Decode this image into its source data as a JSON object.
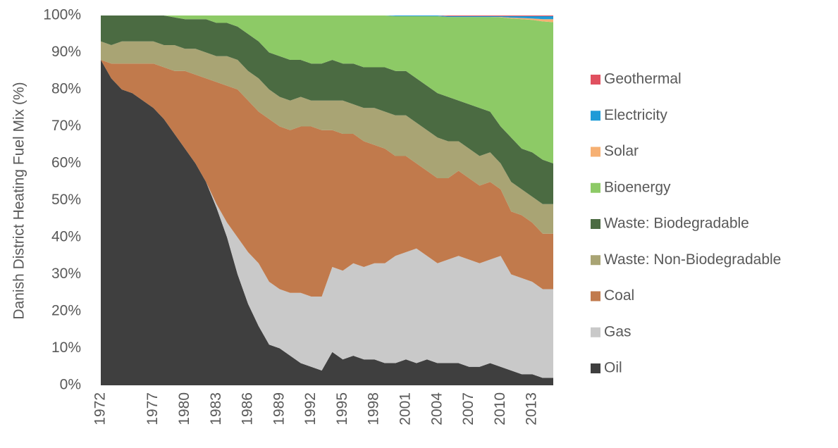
{
  "chart_data": {
    "type": "stacked_area",
    "y_label": "Danish District Heating Fuel Mix (%)",
    "categories": [
      "1972",
      null,
      null,
      null,
      null,
      "1977",
      null,
      null,
      "1980",
      null,
      null,
      "1983",
      null,
      null,
      "1986",
      null,
      null,
      "1989",
      null,
      null,
      "1992",
      null,
      null,
      "1995",
      null,
      null,
      "1998",
      null,
      null,
      "2001",
      null,
      null,
      "2004",
      null,
      null,
      "2007",
      null,
      null,
      "2010",
      null,
      null,
      "2013",
      null,
      null
    ],
    "ylim": [
      0,
      100
    ],
    "yticks": [
      {
        "value": 0,
        "label": "0%"
      },
      {
        "value": 10,
        "label": "10%"
      },
      {
        "value": 20,
        "label": "20%"
      },
      {
        "value": 30,
        "label": "30%"
      },
      {
        "value": 40,
        "label": "40%"
      },
      {
        "value": 50,
        "label": "50%"
      },
      {
        "value": 60,
        "label": "60%"
      },
      {
        "value": 70,
        "label": "70%"
      },
      {
        "value": 80,
        "label": "80%"
      },
      {
        "value": 90,
        "label": "90%"
      },
      {
        "value": 100,
        "label": "100%"
      }
    ],
    "series": [
      {
        "name": "Oil",
        "color": "#3f3f3f",
        "values": [
          88,
          83,
          80,
          79,
          77,
          75,
          72,
          68,
          64,
          60,
          55,
          48,
          40,
          30,
          22,
          16,
          11,
          10,
          8,
          6,
          5,
          4,
          9,
          7,
          8,
          7,
          7,
          6,
          6,
          7,
          6,
          7,
          6,
          6,
          6,
          5,
          5,
          6,
          5,
          4,
          3,
          3,
          2,
          2
        ]
      },
      {
        "name": "Gas",
        "color": "#c9c9c9",
        "values": [
          0,
          0,
          0,
          0,
          0,
          0,
          0,
          0,
          0,
          0,
          0,
          1,
          4,
          10,
          14,
          17,
          17,
          16,
          17,
          19,
          19,
          20,
          23,
          24,
          25,
          25,
          26,
          27,
          29,
          29,
          31,
          28,
          27,
          28,
          29,
          29,
          28,
          28,
          30,
          26,
          26,
          25,
          24,
          24
        ]
      },
      {
        "name": "Coal",
        "color": "#c17a4c",
        "values": [
          0,
          4,
          7,
          8,
          10,
          12,
          14,
          17,
          21,
          24,
          28,
          33,
          37,
          40,
          41,
          41,
          44,
          44,
          44,
          45,
          46,
          45,
          37,
          37,
          35,
          34,
          32,
          31,
          27,
          26,
          23,
          23,
          23,
          22,
          23,
          22,
          21,
          21,
          18,
          17,
          17,
          16,
          15,
          15
        ]
      },
      {
        "name": "Waste: Non-Biodegradable",
        "color": "#a9a474",
        "values": [
          5,
          5,
          6,
          6,
          6,
          6,
          6,
          7,
          6,
          7,
          7,
          7,
          8,
          8,
          8,
          9,
          8,
          8,
          8,
          8,
          7,
          8,
          8,
          9,
          8,
          9,
          10,
          10,
          11,
          11,
          11,
          11,
          11,
          10,
          8,
          8,
          8,
          8,
          7,
          8,
          7,
          7,
          8,
          8
        ]
      },
      {
        "name": "Waste: Biodegradable",
        "color": "#4b6b42",
        "values": [
          7,
          8,
          7,
          7,
          7,
          7,
          8,
          7.5,
          8,
          8,
          9,
          9,
          9,
          9,
          10,
          10,
          10,
          11,
          11,
          10,
          10,
          10,
          11,
          10,
          11,
          11,
          11,
          12,
          12,
          12,
          12,
          12,
          12,
          12,
          11,
          12,
          13,
          11,
          10,
          12,
          11,
          12,
          12,
          11
        ]
      },
      {
        "name": "Bioenergy",
        "color": "#8dca66",
        "values": [
          0,
          0,
          0,
          0,
          0,
          0,
          0,
          0.5,
          1,
          1,
          1,
          2,
          2,
          3,
          5,
          7,
          10,
          11,
          12,
          12,
          13,
          13,
          12,
          13,
          13,
          14,
          14,
          14,
          14.8,
          14.8,
          16.8,
          18.8,
          20.8,
          21.6,
          22.6,
          23.6,
          24.6,
          25.6,
          29.5,
          32.2,
          35,
          35.8,
          37.4,
          38.2
        ]
      },
      {
        "name": "Solar",
        "color": "#f6b073",
        "values": [
          0,
          0,
          0,
          0,
          0,
          0,
          0,
          0,
          0,
          0,
          0,
          0,
          0,
          0,
          0,
          0,
          0,
          0,
          0,
          0,
          0,
          0,
          0,
          0,
          0,
          0,
          0,
          0,
          0,
          0,
          0,
          0,
          0,
          0,
          0,
          0,
          0,
          0,
          0.1,
          0.2,
          0.3,
          0.4,
          0.6,
          0.8
        ]
      },
      {
        "name": "Electricity",
        "color": "#1f9bd7",
        "values": [
          0,
          0,
          0,
          0,
          0,
          0,
          0,
          0,
          0,
          0,
          0,
          0,
          0,
          0,
          0,
          0,
          0,
          0,
          0,
          0,
          0,
          0,
          0,
          0,
          0,
          0,
          0,
          0,
          0.2,
          0.2,
          0.2,
          0.2,
          0.2,
          0.2,
          0.2,
          0.2,
          0.2,
          0.2,
          0.2,
          0.4,
          0.5,
          0.6,
          0.8,
          0.8
        ]
      },
      {
        "name": "Geothermal",
        "color": "#e0505f",
        "values": [
          0,
          0,
          0,
          0,
          0,
          0,
          0,
          0,
          0,
          0,
          0,
          0,
          0,
          0,
          0,
          0,
          0,
          0,
          0,
          0,
          0,
          0,
          0,
          0,
          0,
          0,
          0,
          0,
          0,
          0,
          0,
          0,
          0,
          0.2,
          0.2,
          0.2,
          0.2,
          0.2,
          0.2,
          0.2,
          0.2,
          0.2,
          0.2,
          0.2
        ]
      }
    ]
  }
}
